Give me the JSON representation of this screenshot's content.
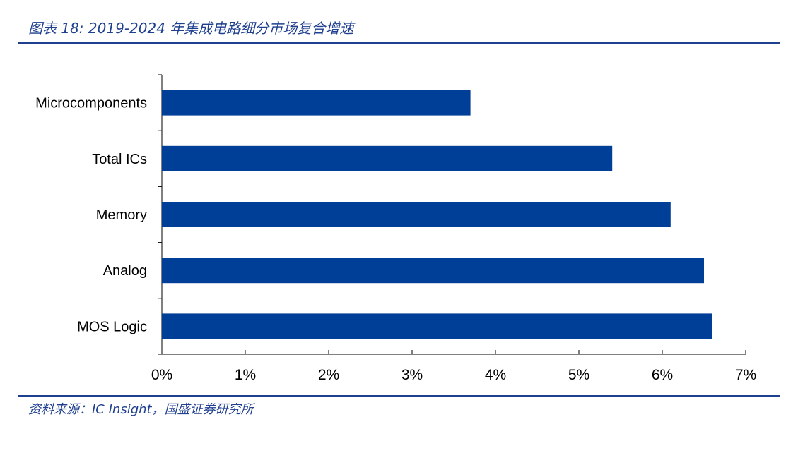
{
  "title": "图表 18:  2019-2024 年集成电路细分市场复合增速",
  "source": "资料来源：IC Insight，国盛证券研究所",
  "chart_data": {
    "type": "bar",
    "orientation": "horizontal",
    "categories": [
      "Microcomponents",
      "Total ICs",
      "Memory",
      "Analog",
      "MOS Logic"
    ],
    "values": [
      3.7,
      5.4,
      6.1,
      6.5,
      6.6
    ],
    "unit": "%",
    "xlim": [
      0,
      7
    ],
    "xticks": [
      "0%",
      "1%",
      "2%",
      "3%",
      "4%",
      "5%",
      "6%",
      "7%"
    ],
    "grid": false,
    "legend": "none",
    "bar_color": "#003f98"
  }
}
